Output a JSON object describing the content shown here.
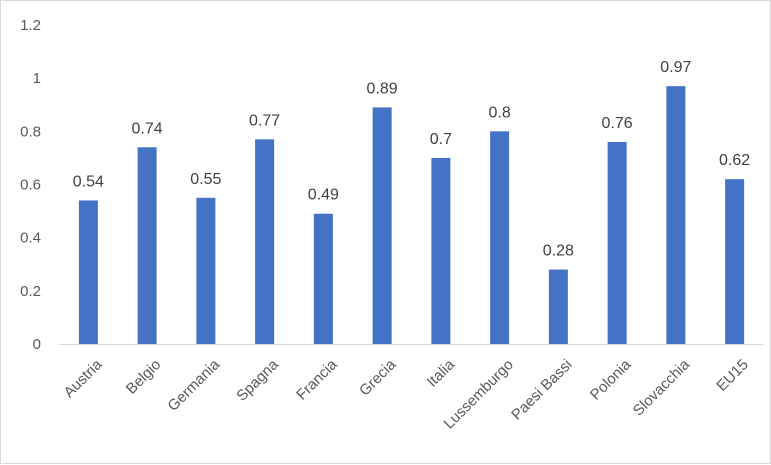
{
  "chart_data": {
    "type": "bar",
    "categories": [
      "Austria",
      "Belgio",
      "Germania",
      "Spagna",
      "Francia",
      "Grecia",
      "Italia",
      "Lussemburgo",
      "Paesi Bassi",
      "Polonia",
      "Slovacchia",
      "EU15"
    ],
    "values": [
      0.54,
      0.74,
      0.55,
      0.77,
      0.49,
      0.89,
      0.7,
      0.8,
      0.28,
      0.76,
      0.97,
      0.62
    ],
    "data_labels": [
      "0.54",
      "0.74",
      "0.55",
      "0.77",
      "0.49",
      "0.89",
      "0.7",
      "0.8",
      "0.28",
      "0.76",
      "0.97",
      "0.62"
    ],
    "yticks": [
      "0",
      "0.2",
      "0.4",
      "0.6",
      "0.8",
      "1",
      "1.2"
    ],
    "ylim": [
      0,
      1.2
    ],
    "title": "",
    "xlabel": "",
    "ylabel": "",
    "grid": false,
    "legend": "none",
    "bar_color": "#4472c4"
  }
}
